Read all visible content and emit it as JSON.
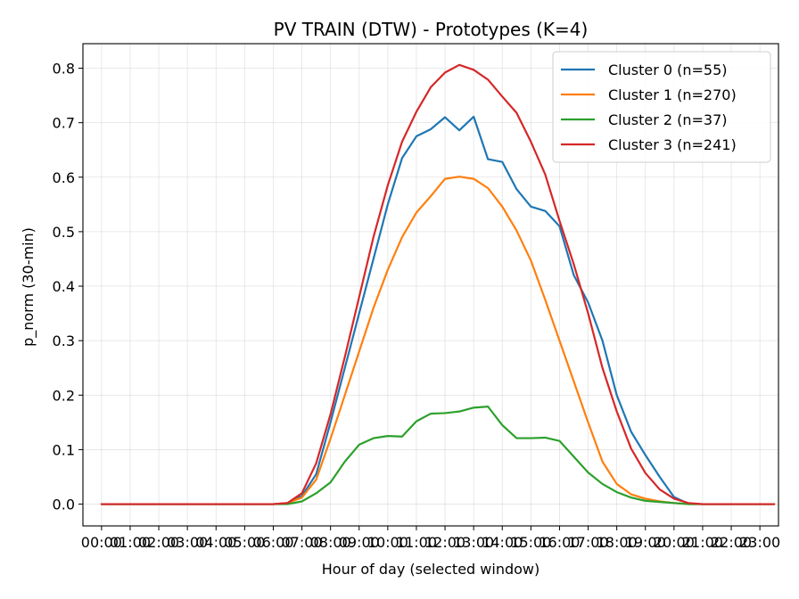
{
  "chart_data": {
    "type": "line",
    "title": "PV TRAIN (DTW) - Prototypes (K=4)",
    "xlabel": "Hour of day (selected window)",
    "ylabel": "p_norm (30-min)",
    "ylim": [
      -0.04,
      0.845
    ],
    "xlim": [
      -1.3,
      47.3
    ],
    "grid": true,
    "legend_position": "top-right",
    "yticks": [
      0.0,
      0.1,
      0.2,
      0.3,
      0.4,
      0.5,
      0.6,
      0.7,
      0.8
    ],
    "ytick_labels": [
      "0.0",
      "0.1",
      "0.2",
      "0.3",
      "0.4",
      "0.5",
      "0.6",
      "0.7",
      "0.8"
    ],
    "xticks": [
      0,
      2,
      4,
      6,
      8,
      10,
      12,
      14,
      16,
      18,
      20,
      22,
      24,
      26,
      28,
      30,
      32,
      34,
      36,
      38,
      40,
      42,
      44,
      46
    ],
    "xtick_labels": [
      "00:00",
      "01:00",
      "02:00",
      "03:00",
      "04:00",
      "05:00",
      "06:00",
      "07:00",
      "08:00",
      "09:00",
      "10:00",
      "11:00",
      "12:00",
      "13:00",
      "14:00",
      "15:00",
      "16:00",
      "17:00",
      "18:00",
      "19:00",
      "20:00",
      "21:00",
      "22:00",
      "23:00"
    ],
    "x": [
      0,
      1,
      2,
      3,
      4,
      5,
      6,
      7,
      8,
      9,
      10,
      11,
      12,
      13,
      14,
      15,
      16,
      17,
      18,
      19,
      20,
      21,
      22,
      23,
      24,
      25,
      26,
      27,
      28,
      29,
      30,
      31,
      32,
      33,
      34,
      35,
      36,
      37,
      38,
      39,
      40,
      41,
      42,
      43,
      44,
      45,
      46,
      47
    ],
    "series": [
      {
        "name": "Cluster 0 (n=55)",
        "color": "#1f77b4",
        "values": [
          0,
          0,
          0,
          0,
          0,
          0,
          0,
          0,
          0,
          0,
          0,
          0,
          0,
          0.002,
          0.015,
          0.055,
          0.15,
          0.25,
          0.35,
          0.45,
          0.55,
          0.635,
          0.675,
          0.688,
          0.71,
          0.686,
          0.711,
          0.633,
          0.628,
          0.578,
          0.546,
          0.538,
          0.51,
          0.42,
          0.37,
          0.3,
          0.2,
          0.133,
          0.09,
          0.05,
          0.013,
          0.001,
          0,
          0,
          0,
          0,
          0,
          0
        ]
      },
      {
        "name": "Cluster 1 (n=270)",
        "color": "#ff7f0e",
        "values": [
          0,
          0,
          0,
          0,
          0,
          0,
          0,
          0,
          0,
          0,
          0,
          0,
          0,
          0.002,
          0.012,
          0.045,
          0.12,
          0.2,
          0.28,
          0.36,
          0.43,
          0.49,
          0.535,
          0.565,
          0.597,
          0.601,
          0.597,
          0.58,
          0.546,
          0.502,
          0.447,
          0.375,
          0.3,
          0.225,
          0.15,
          0.078,
          0.037,
          0.018,
          0.01,
          0.005,
          0.002,
          0,
          0,
          0,
          0,
          0,
          0,
          0
        ]
      },
      {
        "name": "Cluster 2 (n=37)",
        "color": "#2ca02c",
        "values": [
          0,
          0,
          0,
          0,
          0,
          0,
          0,
          0,
          0,
          0,
          0,
          0,
          0,
          0,
          0.005,
          0.02,
          0.04,
          0.078,
          0.109,
          0.121,
          0.125,
          0.124,
          0.152,
          0.166,
          0.167,
          0.17,
          0.177,
          0.179,
          0.145,
          0.121,
          0.121,
          0.122,
          0.116,
          0.087,
          0.058,
          0.037,
          0.022,
          0.012,
          0.006,
          0.004,
          0.002,
          0,
          0,
          0,
          0,
          0,
          0,
          0
        ]
      },
      {
        "name": "Cluster 3 (n=241)",
        "color": "#d62728",
        "values": [
          0,
          0,
          0,
          0,
          0,
          0,
          0,
          0,
          0,
          0,
          0,
          0,
          0,
          0.002,
          0.02,
          0.075,
          0.165,
          0.27,
          0.38,
          0.49,
          0.585,
          0.665,
          0.72,
          0.765,
          0.792,
          0.806,
          0.797,
          0.779,
          0.748,
          0.718,
          0.665,
          0.605,
          0.52,
          0.44,
          0.35,
          0.25,
          0.17,
          0.102,
          0.057,
          0.027,
          0.01,
          0.002,
          0,
          0,
          0,
          0,
          0,
          0
        ]
      }
    ]
  }
}
